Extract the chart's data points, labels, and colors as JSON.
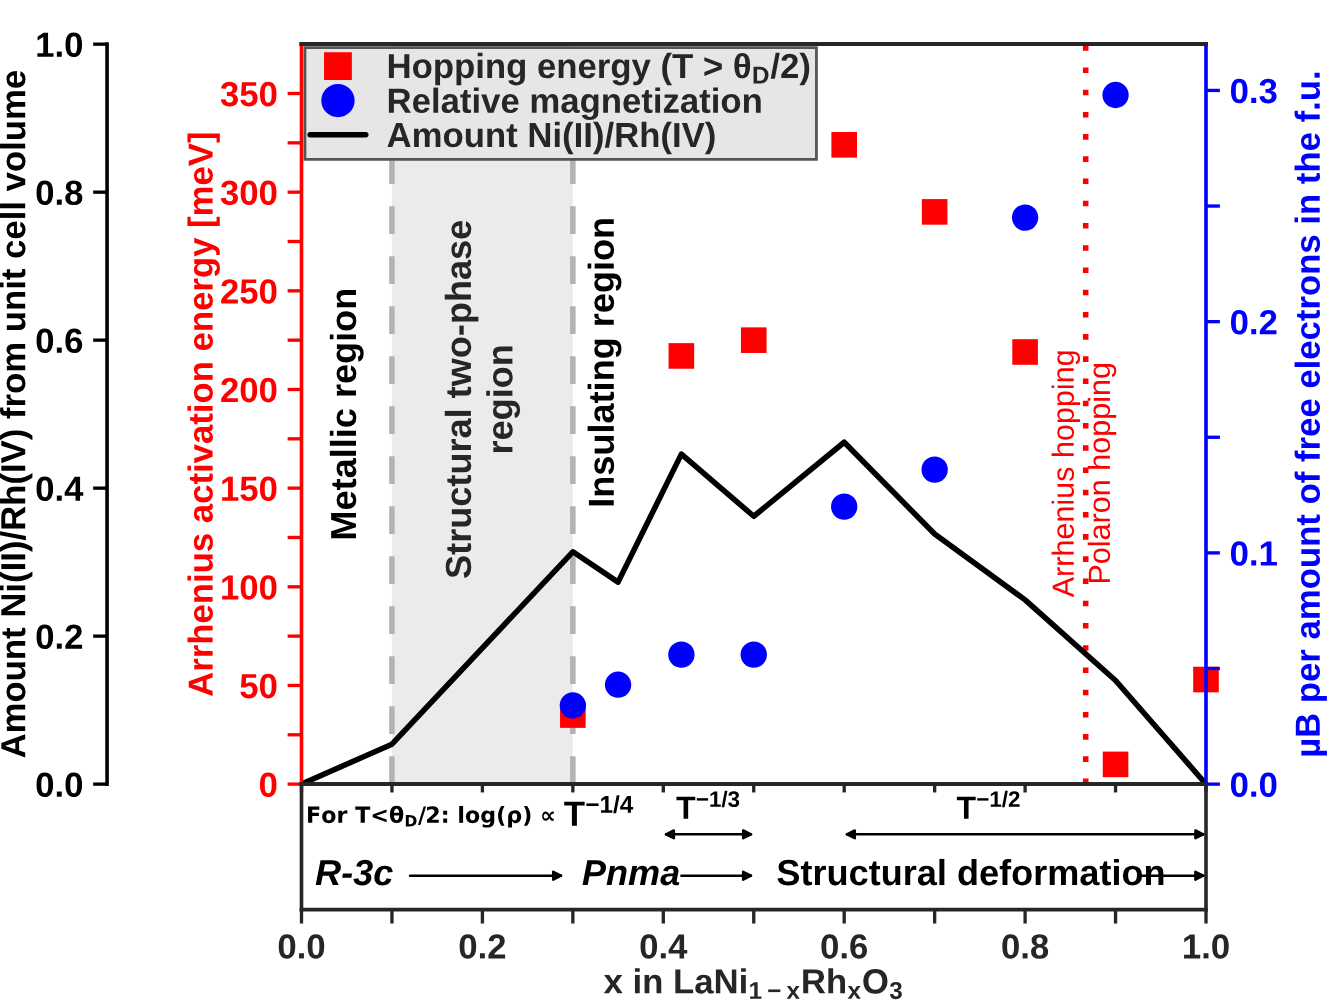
{
  "chart_data": {
    "type": "scatter",
    "series": [
      {
        "name": "Amount Ni(II)/Rh(IV)",
        "type": "line",
        "color": "#000000",
        "marker": "none",
        "line_style": "solid",
        "axis": "y",
        "x": [
          0.0,
          0.1,
          0.3,
          0.35,
          0.42,
          0.5,
          0.6,
          0.7,
          0.8,
          0.9,
          1.0
        ],
        "values": [
          0.0,
          0.054,
          0.314,
          0.273,
          0.446,
          0.362,
          0.462,
          0.338,
          0.249,
          0.14,
          0.0
        ]
      },
      {
        "name": "Hopping energy (T > θ$_{D}$/2)",
        "type": "scatter",
        "color": "#ff0000",
        "marker": "square",
        "axis": "y2",
        "x": [
          0.3,
          0.42,
          0.5,
          0.6,
          0.7,
          0.8,
          0.9,
          1.0
        ],
        "values": [
          35,
          217,
          225,
          324,
          290,
          219,
          10,
          53
        ]
      },
      {
        "name": "Relative magnetization",
        "type": "scatter",
        "color": "#0000ff",
        "marker": "circle",
        "axis": "y3",
        "x": [
          0.3,
          0.35,
          0.42,
          0.5,
          0.6,
          0.7,
          0.8,
          0.9
        ],
        "values": [
          0.034,
          0.043,
          0.056,
          0.056,
          0.12,
          0.136,
          0.245,
          0.298
        ]
      }
    ],
    "xlim": [
      0,
      1
    ],
    "xticks": [
      {
        "value": 0,
        "label": "0.0"
      },
      {
        "value": 0.1,
        "label": null
      },
      {
        "value": 0.2,
        "label": "0.2"
      },
      {
        "value": 0.3,
        "label": null
      },
      {
        "value": 0.4,
        "label": "0.4"
      },
      {
        "value": 0.5,
        "label": null
      },
      {
        "value": 0.6,
        "label": "0.6"
      },
      {
        "value": 0.7,
        "label": null
      },
      {
        "value": 0.8,
        "label": "0.8"
      },
      {
        "value": 0.9,
        "label": null
      },
      {
        "value": 1.0,
        "label": "1.0"
      }
    ],
    "xlabel": "x in LaNi$_{1−x}$Rh$_{x}$O$_{3}$",
    "ylim": [
      0,
      1
    ],
    "yticks": [
      {
        "value": 0,
        "label": "0.0"
      },
      {
        "value": 0.2,
        "label": "0.2"
      },
      {
        "value": 0.4,
        "label": "0.4"
      },
      {
        "value": 0.6,
        "label": "0.6"
      },
      {
        "value": 0.8,
        "label": "0.8"
      },
      {
        "value": 1.0,
        "label": "1.0"
      }
    ],
    "ylabel": "Amount Ni(II)/Rh(IV) from unit cell volume",
    "y2lim": [
      0,
      375
    ],
    "y2ticks": [
      0,
      {
        "value": 25,
        "label": null
      },
      50,
      {
        "value": 75,
        "label": null
      },
      100,
      {
        "value": 125,
        "label": null
      },
      150,
      {
        "value": 175,
        "label": null
      },
      200,
      {
        "value": 225,
        "label": null
      },
      250,
      {
        "value": 275,
        "label": null
      },
      300,
      {
        "value": 325,
        "label": null
      },
      350
    ],
    "y2label": "Arrhenius activation energy [meV]",
    "y3lim": [
      0,
      0.32
    ],
    "y3ticks": [
      {
        "value": 0,
        "label": "0.0"
      },
      {
        "value": 0.05,
        "label": null
      },
      0.1,
      {
        "value": 0.15,
        "label": null
      },
      0.2,
      {
        "value": 0.25,
        "label": null
      },
      0.3
    ],
    "y3label": "µB per amount of free electrons in the f.u.",
    "legend": "top left",
    "ref_lines": [
      {
        "axis": "x",
        "value": 0.1,
        "color": "#b3b3b3",
        "line_style": "dashed"
      },
      {
        "axis": "x",
        "value": 0.3,
        "color": "#b3b3b3",
        "line_style": "dashed"
      },
      {
        "axis": "x",
        "value": 0.867,
        "color": "#ff0000",
        "line_style": "dotted"
      }
    ],
    "bands": [
      {
        "axis": "x",
        "from": 0.1,
        "to": 0.3,
        "label": "Structural two-phase\nregion",
        "color": "#ebebeb"
      }
    ],
    "annotations": [
      "Metallic region",
      "Insulating region",
      "Arrhenius hopping",
      "Polaron hopping",
      "For T<θ$_{D}$/2: log(ρ) ∝",
      "T$^{−1/4}$",
      "T$^{−1/3}$",
      "T$^{−1/2}$",
      "R-3c",
      "Pnma",
      "Structural deformation"
    ]
  }
}
